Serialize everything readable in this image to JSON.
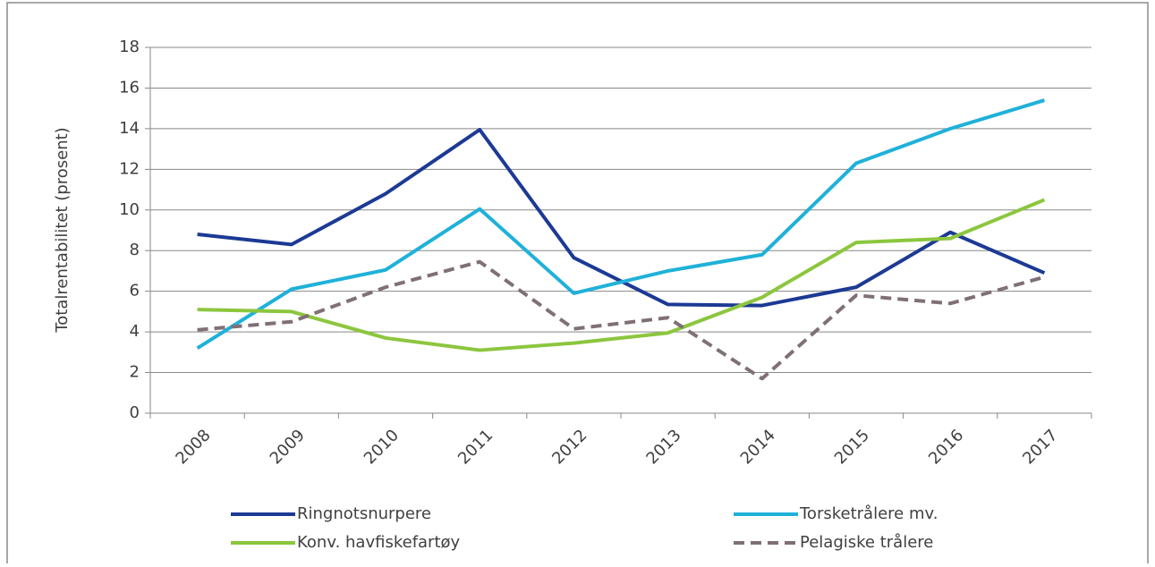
{
  "chart_data": {
    "type": "line",
    "y_label": "Totalrentabilitet (prosent)",
    "categories": [
      "2008",
      "2009",
      "2010",
      "2011",
      "2012",
      "2013",
      "2014",
      "2015",
      "2016",
      "2017"
    ],
    "series": [
      {
        "name": "Ringnotsnurpere",
        "color": "#1c3a94",
        "values": [
          8.8,
          8.3,
          10.8,
          13.95,
          7.65,
          5.35,
          5.3,
          6.2,
          8.9,
          6.9
        ]
      },
      {
        "name": "Torsketrålere mv.",
        "color": "#1fb1d9",
        "values": [
          3.2,
          6.1,
          7.05,
          10.05,
          5.9,
          7.0,
          7.8,
          12.3,
          14.0,
          15.4
        ]
      },
      {
        "name": "Konv. havfiskefartøy",
        "color": "#8cc63e",
        "values": [
          5.1,
          5.0,
          3.7,
          3.1,
          3.45,
          3.95,
          5.7,
          8.4,
          8.6,
          10.5
        ]
      },
      {
        "name": "Pelagiske trålere",
        "color": "#7f7077",
        "dashed": true,
        "values": [
          4.1,
          4.5,
          6.2,
          7.45,
          4.15,
          4.7,
          1.7,
          5.8,
          5.4,
          6.7
        ]
      }
    ],
    "ylim": [
      0,
      18
    ],
    "yticks": [
      0,
      2,
      4,
      6,
      8,
      10,
      12,
      14,
      16,
      18
    ],
    "grid": true,
    "legend": "bottom"
  }
}
